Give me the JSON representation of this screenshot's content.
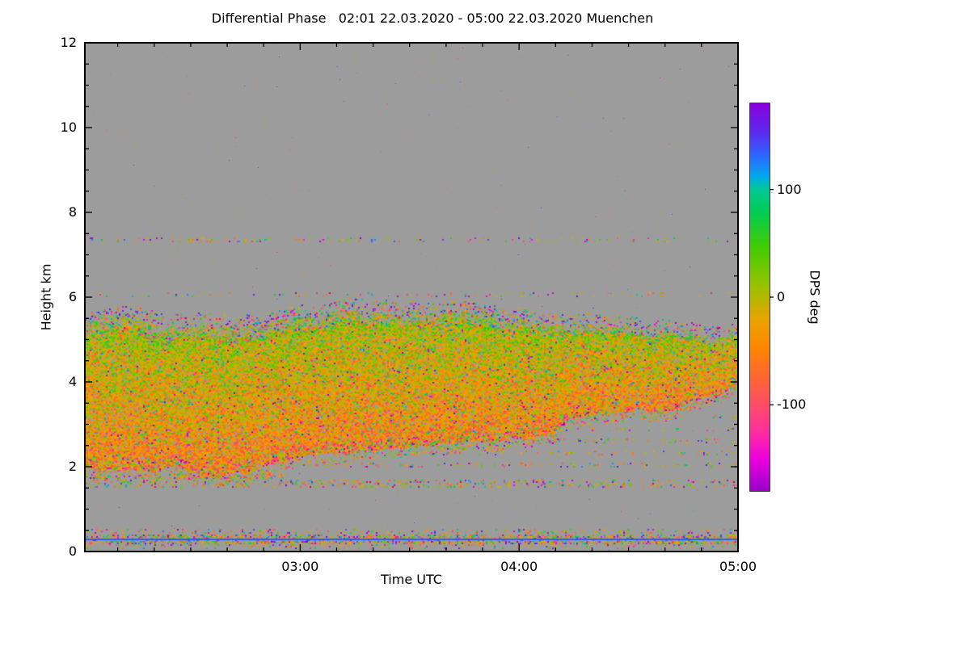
{
  "chart_data": {
    "type": "heatmap",
    "title": "Differential Phase   02:01 22.03.2020 - 05:00 22.03.2020 Muenchen",
    "xlabel": "Time UTC",
    "ylabel": "Height km",
    "station": "Muenchen",
    "date": "22.03.2020",
    "time_start_utc": "02:01",
    "time_end_utc": "05:00",
    "x_range_minutes": 179,
    "y_range_km": [
      0,
      12
    ],
    "background_color": "#9c9c9c",
    "axis_color": "#000000",
    "x_ticks": [
      {
        "label": "03:00",
        "t": 59
      },
      {
        "label": "04:00",
        "t": 119
      },
      {
        "label": "05:00",
        "t": 179
      }
    ],
    "y_ticks": [
      {
        "label": "0",
        "km": 0
      },
      {
        "label": "2",
        "km": 2
      },
      {
        "label": "4",
        "km": 4
      },
      {
        "label": "6",
        "km": 6
      },
      {
        "label": "8",
        "km": 8
      },
      {
        "label": "10",
        "km": 10
      },
      {
        "label": "12",
        "km": 12
      }
    ],
    "colorbar": {
      "label": "DPS deg",
      "units": "deg",
      "range": [
        -180,
        180
      ],
      "ticks": [
        {
          "label": "100",
          "v": 100
        },
        {
          "label": "0",
          "v": 0
        },
        {
          "label": "-100",
          "v": -100
        }
      ],
      "stops": [
        {
          "v": 180,
          "c": "#8a00dd"
        },
        {
          "v": 152,
          "c": "#5a2bee"
        },
        {
          "v": 130,
          "c": "#2a6bff"
        },
        {
          "v": 112,
          "c": "#00aaee"
        },
        {
          "v": 100,
          "c": "#00c896"
        },
        {
          "v": 80,
          "c": "#00cc55"
        },
        {
          "v": 45,
          "c": "#44cc00"
        },
        {
          "v": 15,
          "c": "#8cc400"
        },
        {
          "v": 0,
          "c": "#b4b800"
        },
        {
          "v": -20,
          "c": "#e8a400"
        },
        {
          "v": -45,
          "c": "#ff8800"
        },
        {
          "v": -75,
          "c": "#ff6633"
        },
        {
          "v": -100,
          "c": "#ff4d66"
        },
        {
          "v": -125,
          "c": "#ff2e9e"
        },
        {
          "v": -150,
          "c": "#ee00dd"
        },
        {
          "v": -180,
          "c": "#9900cc"
        }
      ]
    },
    "main_echo": {
      "t": [
        0,
        12,
        25,
        38,
        48,
        58,
        70,
        85,
        100,
        112,
        122,
        128,
        133,
        142,
        152,
        163,
        172,
        179
      ],
      "base_km": [
        2.0,
        1.92,
        1.86,
        1.82,
        1.95,
        2.1,
        2.2,
        2.3,
        2.42,
        2.52,
        2.58,
        2.62,
        3.02,
        3.1,
        3.28,
        3.5,
        3.72,
        3.92
      ],
      "top_km": [
        5.3,
        5.42,
        5.5,
        5.35,
        5.3,
        5.4,
        5.48,
        5.42,
        5.52,
        5.5,
        5.45,
        5.42,
        5.4,
        5.3,
        5.18,
        5.05,
        4.98,
        5.0
      ],
      "density": 0.92,
      "value_mean_top": 10,
      "value_mean_bottom": -50,
      "value_sd": 35,
      "outlier_fraction": 0.06
    },
    "layers": [
      {
        "km": 0.3,
        "thick_km": 0.18,
        "t0": 0,
        "t1": 179,
        "density": 0.5,
        "solid_color": "#2b5bff"
      },
      {
        "km": 0.5,
        "thick_km": 0.08,
        "t0": 0,
        "t1": 179,
        "density": 0.16
      },
      {
        "km": 0.14,
        "thick_km": 0.06,
        "t0": 0,
        "t1": 179,
        "density": 0.12
      },
      {
        "km": 1.62,
        "thick_km": 0.14,
        "t0": 0,
        "t1": 179,
        "density": 0.22
      },
      {
        "km": 1.8,
        "thick_km": 0.09,
        "t0": 0,
        "t1": 55,
        "density": 0.35
      },
      {
        "km": 2.05,
        "thick_km": 0.07,
        "t0": 55,
        "t1": 179,
        "density": 0.14
      },
      {
        "km": 2.35,
        "thick_km": 0.07,
        "t0": 80,
        "t1": 179,
        "density": 0.12
      },
      {
        "km": 2.62,
        "thick_km": 0.06,
        "t0": 110,
        "t1": 179,
        "density": 0.12
      },
      {
        "km": 2.9,
        "thick_km": 0.05,
        "t0": 128,
        "t1": 179,
        "density": 0.1
      },
      {
        "km": 3.2,
        "thick_km": 0.05,
        "t0": 140,
        "t1": 179,
        "density": 0.09
      },
      {
        "km": 3.55,
        "thick_km": 0.05,
        "t0": 152,
        "t1": 179,
        "density": 0.08
      },
      {
        "km": 6.08,
        "thick_km": 0.07,
        "t0": 0,
        "t1": 179,
        "density": 0.06
      },
      {
        "km": 7.38,
        "thick_km": 0.07,
        "t0": 0,
        "t1": 179,
        "density": 0.12
      }
    ],
    "background_speckle_density": 0.0006
  }
}
